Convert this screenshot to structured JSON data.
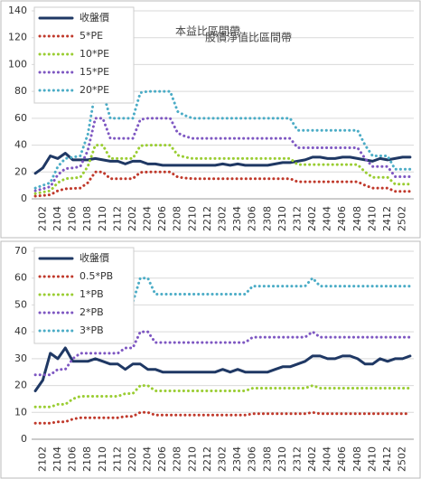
{
  "chart_data": [
    {
      "type": "line",
      "title": "本益比區間帶",
      "categories": [
        null,
        "2102",
        null,
        "2104",
        null,
        "2106",
        null,
        "2108",
        null,
        "2110",
        null,
        "2112",
        null,
        "2202",
        null,
        "2204",
        null,
        "2206",
        null,
        "2208",
        null,
        "2210",
        null,
        "2212",
        null,
        "2302",
        null,
        "2304",
        null,
        "2306",
        null,
        "2308",
        null,
        "2310",
        null,
        "2312",
        null,
        "2402",
        null,
        "2404",
        null,
        "2406",
        null,
        "2408",
        null,
        "2410",
        null,
        "2412",
        null,
        "2502",
        null
      ],
      "ylim": [
        0,
        140
      ],
      "yticks": [
        0,
        20,
        40,
        60,
        80,
        100,
        120,
        140
      ],
      "grid": true,
      "legend": "upper left",
      "series": [
        {
          "name": "收盤價",
          "color": "#1f3864",
          "values": [
            19,
            23,
            32,
            30,
            34,
            29,
            29,
            29,
            30,
            29,
            28,
            28,
            26,
            28,
            28,
            26,
            26,
            25,
            25,
            25,
            25,
            25,
            25,
            25,
            25,
            26,
            25,
            26,
            25,
            25,
            25,
            25,
            26,
            27,
            27,
            28,
            29,
            31,
            31,
            30,
            30,
            31,
            31,
            30,
            29,
            28,
            30,
            29,
            30,
            31,
            31
          ]
        },
        {
          "name": "5*PE",
          "color": "#c0392b",
          "values": [
            2,
            2.5,
            3,
            6,
            7.5,
            7.75,
            8,
            12,
            20,
            20,
            15,
            15,
            15,
            15,
            19.75,
            20,
            20,
            20,
            20,
            16.25,
            15.5,
            15,
            15,
            15,
            15,
            15,
            15,
            15,
            15,
            15,
            15,
            15,
            15,
            15,
            15,
            12.75,
            12.75,
            12.75,
            12.75,
            12.75,
            12.75,
            12.75,
            12.75,
            12.75,
            10,
            8,
            8,
            8,
            5.5,
            5.5,
            5.5
          ]
        },
        {
          "name": "10*PE",
          "color": "#9acd32",
          "values": [
            4,
            5,
            6,
            12,
            15,
            15.5,
            16,
            24,
            40,
            40,
            30,
            30,
            30,
            30,
            39.5,
            40,
            40,
            40,
            40,
            32.5,
            31,
            30,
            30,
            30,
            30,
            30,
            30,
            30,
            30,
            30,
            30,
            30,
            30,
            30,
            30,
            25.5,
            25.5,
            25.5,
            25.5,
            25.5,
            25.5,
            25.5,
            25.5,
            25.5,
            20,
            16,
            16,
            16,
            11,
            11,
            11
          ]
        },
        {
          "name": "15*PE",
          "color": "#7e57c2",
          "values": [
            6,
            7.5,
            9,
            18,
            22.5,
            23,
            24,
            36,
            60,
            60,
            45,
            45,
            45,
            45,
            59,
            60,
            60,
            60,
            60,
            49,
            46.5,
            45,
            45,
            45,
            45,
            45,
            45,
            45,
            45,
            45,
            45,
            45,
            45,
            45,
            45,
            38,
            38,
            38,
            38,
            38,
            38,
            38,
            38,
            38,
            30,
            24,
            24,
            24,
            16.5,
            16.5,
            16.5
          ]
        },
        {
          "name": "20*PE",
          "color": "#4bacc6",
          "values": [
            8,
            10,
            12,
            24,
            30,
            31,
            32,
            48,
            80,
            80,
            60,
            60,
            60,
            60,
            79,
            80,
            80,
            80,
            80,
            65,
            62,
            60,
            60,
            60,
            60,
            60,
            60,
            60,
            60,
            60,
            60,
            60,
            60,
            60,
            60,
            51,
            51,
            51,
            51,
            51,
            51,
            51,
            51,
            51,
            40,
            32,
            32,
            32,
            22,
            22,
            22
          ]
        }
      ]
    },
    {
      "type": "line",
      "title": "股價淨值比區間帶",
      "categories": [
        null,
        "2102",
        null,
        "2104",
        null,
        "2106",
        null,
        "2108",
        null,
        "2110",
        null,
        "2112",
        null,
        "2202",
        null,
        "2204",
        null,
        "2206",
        null,
        "2208",
        null,
        "2210",
        null,
        "2212",
        null,
        "2302",
        null,
        "2304",
        null,
        "2306",
        null,
        "2308",
        null,
        "2310",
        null,
        "2312",
        null,
        "2402",
        null,
        "2404",
        null,
        "2406",
        null,
        "2408",
        null,
        "2410",
        null,
        "2412",
        null,
        "2502",
        null
      ],
      "ylim": [
        0,
        70
      ],
      "yticks": [
        0,
        10,
        20,
        30,
        40,
        50,
        60,
        70
      ],
      "grid": true,
      "legend": "upper left",
      "series": [
        {
          "name": "收盤價",
          "color": "#1f3864",
          "values": [
            18,
            22,
            32,
            30,
            34,
            29,
            29,
            29,
            30,
            29,
            28,
            28,
            26,
            28,
            28,
            26,
            26,
            25,
            25,
            25,
            25,
            25,
            25,
            25,
            25,
            26,
            25,
            26,
            25,
            25,
            25,
            25,
            26,
            27,
            27,
            28,
            29,
            31,
            31,
            30,
            30,
            31,
            31,
            30,
            28,
            28,
            30,
            29,
            30,
            30,
            31
          ]
        },
        {
          "name": "0.5*PB",
          "color": "#c0392b",
          "values": [
            6,
            6,
            6,
            6.5,
            6.5,
            7.5,
            8,
            8,
            8,
            8,
            8,
            8,
            8.5,
            8.5,
            10,
            10,
            9,
            9,
            9,
            9,
            9,
            9,
            9,
            9,
            9,
            9,
            9,
            9,
            9,
            9.5,
            9.5,
            9.5,
            9.5,
            9.5,
            9.5,
            9.5,
            9.5,
            10,
            9.5,
            9.5,
            9.5,
            9.5,
            9.5,
            9.5,
            9.5,
            9.5,
            9.5,
            9.5,
            9.5,
            9.5,
            9.5
          ]
        },
        {
          "name": "1*PB",
          "color": "#9acd32",
          "values": [
            12,
            12,
            12,
            13,
            13,
            15,
            16,
            16,
            16,
            16,
            16,
            16,
            17,
            17,
            20,
            20,
            18,
            18,
            18,
            18,
            18,
            18,
            18,
            18,
            18,
            18,
            18,
            18,
            18,
            19,
            19,
            19,
            19,
            19,
            19,
            19,
            19,
            20,
            19,
            19,
            19,
            19,
            19,
            19,
            19,
            19,
            19,
            19,
            19,
            19,
            19
          ]
        },
        {
          "name": "2*PB",
          "color": "#7e57c2",
          "values": [
            24,
            24,
            24,
            26,
            26,
            30,
            32,
            32,
            32,
            32,
            32,
            32,
            34,
            34,
            40,
            40,
            36,
            36,
            36,
            36,
            36,
            36,
            36,
            36,
            36,
            36,
            36,
            36,
            36,
            38,
            38,
            38,
            38,
            38,
            38,
            38,
            38,
            40,
            38,
            38,
            38,
            38,
            38,
            38,
            38,
            38,
            38,
            38,
            38,
            38,
            38
          ]
        },
        {
          "name": "3*PB",
          "color": "#4bacc6",
          "values": [
            36,
            36,
            36,
            39,
            39,
            45,
            48,
            48,
            48,
            48,
            48,
            48,
            51,
            51,
            60,
            60,
            54,
            54,
            54,
            54,
            54,
            54,
            54,
            54,
            54,
            54,
            54,
            54,
            54,
            57,
            57,
            57,
            57,
            57,
            57,
            57,
            57,
            60,
            57,
            57,
            57,
            57,
            57,
            57,
            57,
            57,
            57,
            57,
            57,
            57,
            57
          ]
        }
      ]
    }
  ]
}
